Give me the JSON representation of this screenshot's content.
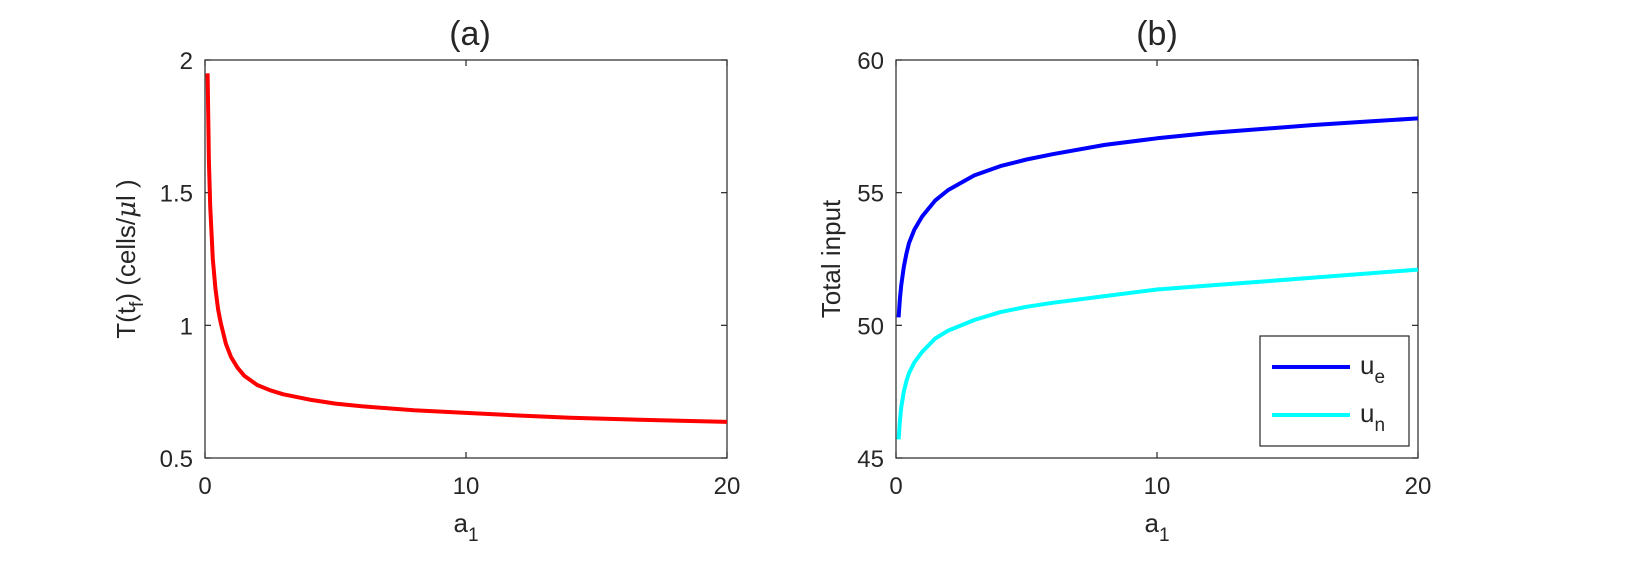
{
  "chart_data": [
    {
      "type": "line",
      "title": "(a)",
      "xlabel": "a",
      "xlabel_sub": "1",
      "ylabel": "T(t",
      "ylabel_sub": "f",
      "ylabel_rest": ") (cells/",
      "ylabel_mu": "μ",
      "ylabel_end": "l )",
      "xlim": [
        0,
        20
      ],
      "ylim": [
        0.5,
        2
      ],
      "xticks": [
        0,
        10,
        20
      ],
      "xtick_labels": [
        "0",
        "10",
        "20"
      ],
      "yticks": [
        0.5,
        1,
        1.5,
        2
      ],
      "ytick_labels": [
        "0.5",
        "1",
        "1.5",
        "2"
      ],
      "grid": false,
      "series": [
        {
          "color": "#ff0000",
          "x": [
            0.1,
            0.15,
            0.2,
            0.3,
            0.4,
            0.5,
            0.6,
            0.8,
            1,
            1.25,
            1.5,
            2,
            2.5,
            3,
            4,
            5,
            6,
            8,
            10,
            12,
            14,
            16,
            18,
            20
          ],
          "y": [
            1.95,
            1.62,
            1.45,
            1.25,
            1.14,
            1.06,
            1.01,
            0.93,
            0.88,
            0.84,
            0.81,
            0.775,
            0.755,
            0.74,
            0.72,
            0.705,
            0.695,
            0.68,
            0.67,
            0.66,
            0.652,
            0.646,
            0.641,
            0.636
          ]
        }
      ]
    },
    {
      "type": "line",
      "title": "(b)",
      "xlabel": "a",
      "xlabel_sub": "1",
      "ylabel": "Total input",
      "xlim": [
        0,
        20
      ],
      "ylim": [
        45,
        60
      ],
      "xticks": [
        0,
        10,
        20
      ],
      "xtick_labels": [
        "0",
        "10",
        "20"
      ],
      "yticks": [
        45,
        50,
        55,
        60
      ],
      "ytick_labels": [
        "45",
        "50",
        "55",
        "60"
      ],
      "grid": false,
      "legend_position": "bottom-right",
      "series": [
        {
          "name": "u",
          "name_sub": "e",
          "color": "#0000ff",
          "x": [
            0.1,
            0.15,
            0.2,
            0.3,
            0.4,
            0.5,
            0.7,
            1,
            1.5,
            2,
            3,
            4,
            5,
            6,
            8,
            10,
            12,
            14,
            16,
            18,
            20
          ],
          "y": [
            50.3,
            51.0,
            51.5,
            52.2,
            52.7,
            53.1,
            53.6,
            54.1,
            54.7,
            55.1,
            55.65,
            56.0,
            56.25,
            56.45,
            56.8,
            57.05,
            57.25,
            57.4,
            57.55,
            57.68,
            57.8
          ]
        },
        {
          "name": "u",
          "name_sub": "n",
          "color": "#00ffff",
          "x": [
            0.1,
            0.15,
            0.2,
            0.3,
            0.4,
            0.5,
            0.7,
            1,
            1.5,
            2,
            3,
            4,
            5,
            6,
            8,
            10,
            12,
            14,
            16,
            18,
            20
          ],
          "y": [
            45.7,
            46.4,
            46.9,
            47.5,
            47.9,
            48.2,
            48.6,
            49.0,
            49.5,
            49.8,
            50.2,
            50.5,
            50.7,
            50.85,
            51.1,
            51.35,
            51.5,
            51.65,
            51.8,
            51.95,
            52.1
          ]
        }
      ]
    }
  ]
}
